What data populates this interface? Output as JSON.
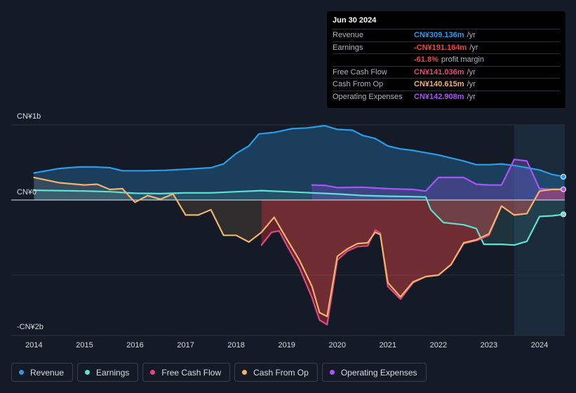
{
  "tooltip": {
    "date": "Jun 30 2024",
    "rows": [
      {
        "label": "Revenue",
        "value": "CN¥309.136m",
        "unit": "/yr",
        "color": "#2b9bea"
      },
      {
        "label": "Earnings",
        "value": "-CN¥191.164m",
        "unit": "/yr",
        "color": "#ef4444"
      },
      {
        "label": "",
        "value": "-61.8%",
        "unit": "profit margin",
        "color": "#ef4444"
      },
      {
        "label": "Free Cash Flow",
        "value": "CN¥141.036m",
        "unit": "/yr",
        "color": "#e0487e"
      },
      {
        "label": "Cash From Op",
        "value": "CN¥140.615m",
        "unit": "/yr",
        "color": "#f0b36b"
      },
      {
        "label": "Operating Expenses",
        "value": "CN¥142.908m",
        "unit": "/yr",
        "color": "#a855f7"
      }
    ]
  },
  "legend": [
    {
      "label": "Revenue",
      "color": "#2b9bea"
    },
    {
      "label": "Earnings",
      "color": "#5fe1d3"
    },
    {
      "label": "Free Cash Flow",
      "color": "#e0487e"
    },
    {
      "label": "Cash From Op",
      "color": "#f0b36b"
    },
    {
      "label": "Operating Expenses",
      "color": "#a855f7"
    }
  ],
  "chart_data": {
    "type": "area",
    "title": "",
    "xlabel": "",
    "ylabel": "",
    "y_tick_labels": [
      {
        "label": "CN¥1b",
        "value": 1000
      },
      {
        "label": "CN¥0",
        "value": 0
      },
      {
        "label": "-CN¥2b",
        "value": -1700
      }
    ],
    "x_tick_labels": [
      "2014",
      "2015",
      "2016",
      "2017",
      "2018",
      "2019",
      "2020",
      "2021",
      "2022",
      "2023",
      "2024"
    ],
    "x_tick_values": [
      2014,
      2015,
      2016,
      2017,
      2018,
      2019,
      2020,
      2021,
      2022,
      2023,
      2024
    ],
    "xlim": [
      2013.55,
      2024.5
    ],
    "ylim": [
      -1800,
      1000
    ],
    "highlight_start": 2023.5,
    "units": "CN¥ millions",
    "series": [
      {
        "name": "Revenue",
        "color": "#2b9bea",
        "points": [
          [
            2014.0,
            360
          ],
          [
            2014.5,
            420
          ],
          [
            2014.9,
            440
          ],
          [
            2015.2,
            440
          ],
          [
            2015.5,
            430
          ],
          [
            2015.75,
            390
          ],
          [
            2016.2,
            390
          ],
          [
            2016.6,
            395
          ],
          [
            2017.0,
            410
          ],
          [
            2017.5,
            430
          ],
          [
            2017.75,
            480
          ],
          [
            2018.0,
            620
          ],
          [
            2018.25,
            720
          ],
          [
            2018.45,
            880
          ],
          [
            2018.75,
            900
          ],
          [
            2019.1,
            950
          ],
          [
            2019.4,
            960
          ],
          [
            2019.75,
            990
          ],
          [
            2020.0,
            940
          ],
          [
            2020.3,
            930
          ],
          [
            2020.5,
            860
          ],
          [
            2020.75,
            820
          ],
          [
            2021.0,
            720
          ],
          [
            2021.25,
            680
          ],
          [
            2021.5,
            660
          ],
          [
            2022.0,
            600
          ],
          [
            2022.5,
            520
          ],
          [
            2022.75,
            470
          ],
          [
            2023.0,
            470
          ],
          [
            2023.25,
            480
          ],
          [
            2023.5,
            460
          ],
          [
            2023.75,
            430
          ],
          [
            2024.0,
            400
          ],
          [
            2024.25,
            340
          ],
          [
            2024.5,
            309
          ]
        ]
      },
      {
        "name": "Earnings",
        "color": "#5fe1d3",
        "points": [
          [
            2014.0,
            130
          ],
          [
            2014.5,
            125
          ],
          [
            2015.0,
            120
          ],
          [
            2015.5,
            110
          ],
          [
            2016.0,
            90
          ],
          [
            2016.5,
            85
          ],
          [
            2017.0,
            95
          ],
          [
            2017.5,
            95
          ],
          [
            2018.0,
            110
          ],
          [
            2018.5,
            125
          ],
          [
            2019.0,
            110
          ],
          [
            2019.5,
            95
          ],
          [
            2020.0,
            80
          ],
          [
            2020.5,
            60
          ],
          [
            2021.0,
            50
          ],
          [
            2021.5,
            45
          ],
          [
            2021.75,
            40
          ],
          [
            2021.85,
            -130
          ],
          [
            2022.1,
            -300
          ],
          [
            2022.5,
            -330
          ],
          [
            2022.75,
            -380
          ],
          [
            2022.9,
            -590
          ],
          [
            2023.25,
            -590
          ],
          [
            2023.5,
            -600
          ],
          [
            2023.75,
            -550
          ],
          [
            2024.0,
            -220
          ],
          [
            2024.25,
            -210
          ],
          [
            2024.5,
            -191
          ]
        ]
      },
      {
        "name": "Free Cash Flow",
        "color": "#e0487e",
        "points": [
          [
            2018.5,
            -600
          ],
          [
            2018.7,
            -430
          ],
          [
            2018.85,
            -410
          ],
          [
            2019.0,
            -600
          ],
          [
            2019.25,
            -900
          ],
          [
            2019.5,
            -1300
          ],
          [
            2019.65,
            -1600
          ],
          [
            2019.8,
            -1660
          ],
          [
            2020.0,
            -800
          ],
          [
            2020.2,
            -680
          ],
          [
            2020.4,
            -620
          ],
          [
            2020.6,
            -610
          ],
          [
            2020.75,
            -400
          ],
          [
            2020.85,
            -440
          ],
          [
            2021.0,
            -1150
          ],
          [
            2021.25,
            -1320
          ],
          [
            2021.5,
            -1100
          ],
          [
            2021.75,
            -1020
          ],
          [
            2022.0,
            -1000
          ],
          [
            2022.25,
            -860
          ],
          [
            2022.5,
            -580
          ],
          [
            2022.75,
            -540
          ],
          [
            2023.0,
            -470
          ],
          [
            2023.25,
            -80
          ],
          [
            2023.5,
            -200
          ],
          [
            2023.75,
            -180
          ],
          [
            2024.0,
            120
          ],
          [
            2024.25,
            141
          ],
          [
            2024.5,
            141
          ]
        ]
      },
      {
        "name": "Cash From Op",
        "color": "#f0b36b",
        "points": [
          [
            2014.0,
            300
          ],
          [
            2014.5,
            230
          ],
          [
            2015.0,
            200
          ],
          [
            2015.25,
            210
          ],
          [
            2015.5,
            140
          ],
          [
            2015.75,
            150
          ],
          [
            2016.0,
            -30
          ],
          [
            2016.25,
            60
          ],
          [
            2016.5,
            10
          ],
          [
            2016.75,
            80
          ],
          [
            2017.0,
            -200
          ],
          [
            2017.25,
            -200
          ],
          [
            2017.5,
            -130
          ],
          [
            2017.75,
            -470
          ],
          [
            2018.0,
            -470
          ],
          [
            2018.25,
            -560
          ],
          [
            2018.5,
            -430
          ],
          [
            2018.75,
            -230
          ],
          [
            2019.0,
            -520
          ],
          [
            2019.25,
            -800
          ],
          [
            2019.5,
            -1150
          ],
          [
            2019.65,
            -1500
          ],
          [
            2019.8,
            -1550
          ],
          [
            2020.0,
            -750
          ],
          [
            2020.2,
            -650
          ],
          [
            2020.4,
            -580
          ],
          [
            2020.6,
            -570
          ],
          [
            2020.75,
            -430
          ],
          [
            2020.85,
            -460
          ],
          [
            2021.0,
            -1100
          ],
          [
            2021.25,
            -1290
          ],
          [
            2021.5,
            -1090
          ],
          [
            2021.75,
            -1020
          ],
          [
            2022.0,
            -1000
          ],
          [
            2022.25,
            -860
          ],
          [
            2022.5,
            -570
          ],
          [
            2022.75,
            -530
          ],
          [
            2023.0,
            -450
          ],
          [
            2023.25,
            -80
          ],
          [
            2023.5,
            -200
          ],
          [
            2023.75,
            -180
          ],
          [
            2024.0,
            120
          ],
          [
            2024.25,
            141
          ],
          [
            2024.5,
            141
          ]
        ]
      },
      {
        "name": "Operating Expenses",
        "color": "#a855f7",
        "points": [
          [
            2019.5,
            200
          ],
          [
            2019.75,
            195
          ],
          [
            2020.0,
            165
          ],
          [
            2020.5,
            170
          ],
          [
            2021.0,
            150
          ],
          [
            2021.5,
            140
          ],
          [
            2021.75,
            120
          ],
          [
            2022.0,
            300
          ],
          [
            2022.25,
            300
          ],
          [
            2022.5,
            300
          ],
          [
            2022.75,
            210
          ],
          [
            2023.0,
            200
          ],
          [
            2023.25,
            200
          ],
          [
            2023.5,
            540
          ],
          [
            2023.75,
            520
          ],
          [
            2024.0,
            150
          ],
          [
            2024.25,
            140
          ],
          [
            2024.5,
            143
          ]
        ]
      }
    ]
  }
}
